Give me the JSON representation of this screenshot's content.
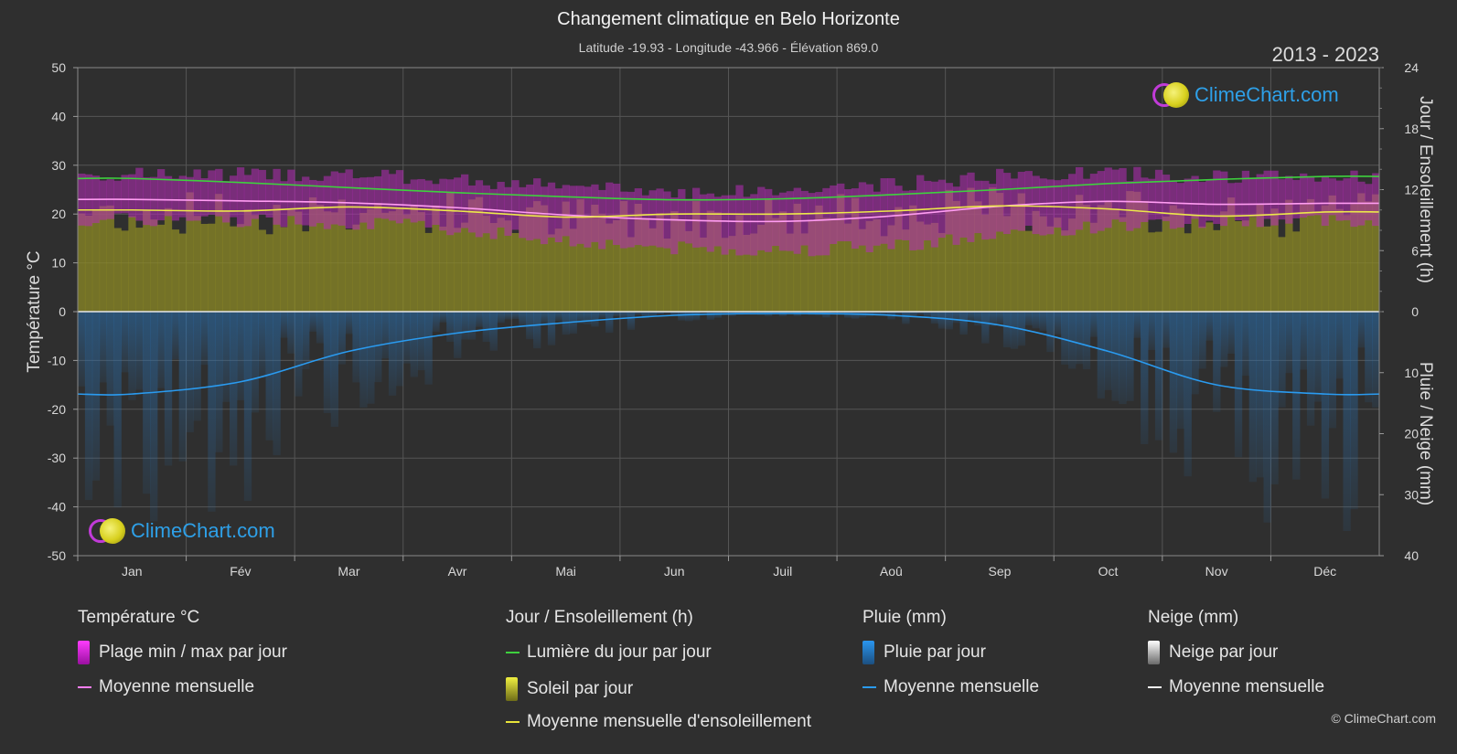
{
  "header": {
    "title": "Changement climatique en Belo Horizonte",
    "subtitle": "Latitude -19.93 - Longitude -43.966 - Élévation 869.0",
    "year_range": "2013 - 2023"
  },
  "axes": {
    "left_label": "Température °C",
    "right_top_label": "Jour / Ensoleillement (h)",
    "right_bottom_label": "Pluie / Neige (mm)",
    "left_ticks": [
      "50",
      "40",
      "30",
      "20",
      "10",
      "0",
      "-10",
      "-20",
      "-30",
      "-40",
      "-50"
    ],
    "right_top_ticks": [
      "24",
      "18",
      "12",
      "6",
      "0"
    ],
    "right_bottom_ticks": [
      "10",
      "20",
      "30",
      "40"
    ]
  },
  "chart_data": {
    "type": "area",
    "categories": [
      "Jan",
      "Fév",
      "Mar",
      "Avr",
      "Mai",
      "Jun",
      "Juil",
      "Aoû",
      "Sep",
      "Oct",
      "Nov",
      "Déc"
    ],
    "temp_ylim": [
      -50,
      50
    ],
    "sun_ylim_h": [
      0,
      24
    ],
    "rain_ylim_mm": [
      0,
      40
    ],
    "series": [
      {
        "name": "Lumière du jour par jour",
        "unit": "h",
        "values": [
          13.1,
          12.7,
          12.2,
          11.7,
          11.3,
          11.0,
          11.1,
          11.5,
          12.0,
          12.6,
          13.0,
          13.3
        ]
      },
      {
        "name": "Moyenne mensuelle d'ensoleillement",
        "unit": "h",
        "values": [
          10.0,
          9.9,
          10.3,
          9.9,
          9.3,
          9.6,
          9.6,
          9.9,
          10.4,
          10.1,
          9.4,
          9.8
        ]
      },
      {
        "name": "Moyenne mensuelle",
        "group": "Température °C",
        "unit": "°C",
        "values": [
          23.0,
          22.7,
          22.3,
          21.3,
          19.8,
          18.8,
          18.5,
          19.6,
          21.6,
          22.6,
          22.0,
          22.2
        ]
      },
      {
        "name": "Plage min / max par jour (max)",
        "unit": "°C",
        "values": [
          28.0,
          28.2,
          28.0,
          27.0,
          25.6,
          24.6,
          24.6,
          26.0,
          27.8,
          28.4,
          27.6,
          27.6
        ]
      },
      {
        "name": "Plage min / max par jour (min)",
        "unit": "°C",
        "values": [
          18.8,
          18.8,
          18.3,
          17.0,
          14.6,
          13.0,
          12.6,
          13.6,
          15.6,
          17.6,
          18.4,
          18.8
        ]
      },
      {
        "name": "Moyenne mensuelle",
        "group": "Pluie (mm)",
        "unit": "mm",
        "values": [
          13.5,
          11.5,
          6.5,
          3.5,
          1.8,
          0.6,
          0.3,
          0.6,
          2.2,
          6.5,
          12.0,
          13.5
        ]
      }
    ]
  },
  "legend": {
    "temperature": {
      "title": "Température °C",
      "items": [
        {
          "label": "Plage min / max par jour",
          "color": "#d41fd4"
        },
        {
          "label": "Moyenne mensuelle",
          "color": "#ff7ef5"
        }
      ]
    },
    "sunshine": {
      "title": "Jour / Ensoleillement (h)",
      "items": [
        {
          "label": "Lumière du jour par jour",
          "color": "#3ed13e"
        },
        {
          "label": "Soleil par jour",
          "color": "#c8c828"
        },
        {
          "label": "Moyenne mensuelle d'ensoleillement",
          "color": "#e8e43a"
        }
      ]
    },
    "rain": {
      "title": "Pluie (mm)",
      "items": [
        {
          "label": "Pluie par jour",
          "color": "#2a86d8"
        },
        {
          "label": "Moyenne mensuelle",
          "color": "#2a9bf0"
        }
      ]
    },
    "snow": {
      "title": "Neige (mm)",
      "items": [
        {
          "label": "Neige par jour",
          "color": "#e8e8e8"
        },
        {
          "label": "Moyenne mensuelle",
          "color": "#f2f2f2"
        }
      ]
    }
  },
  "branding": {
    "logo_text": "ClimeChart.com",
    "copyright": "© ClimeChart.com"
  }
}
